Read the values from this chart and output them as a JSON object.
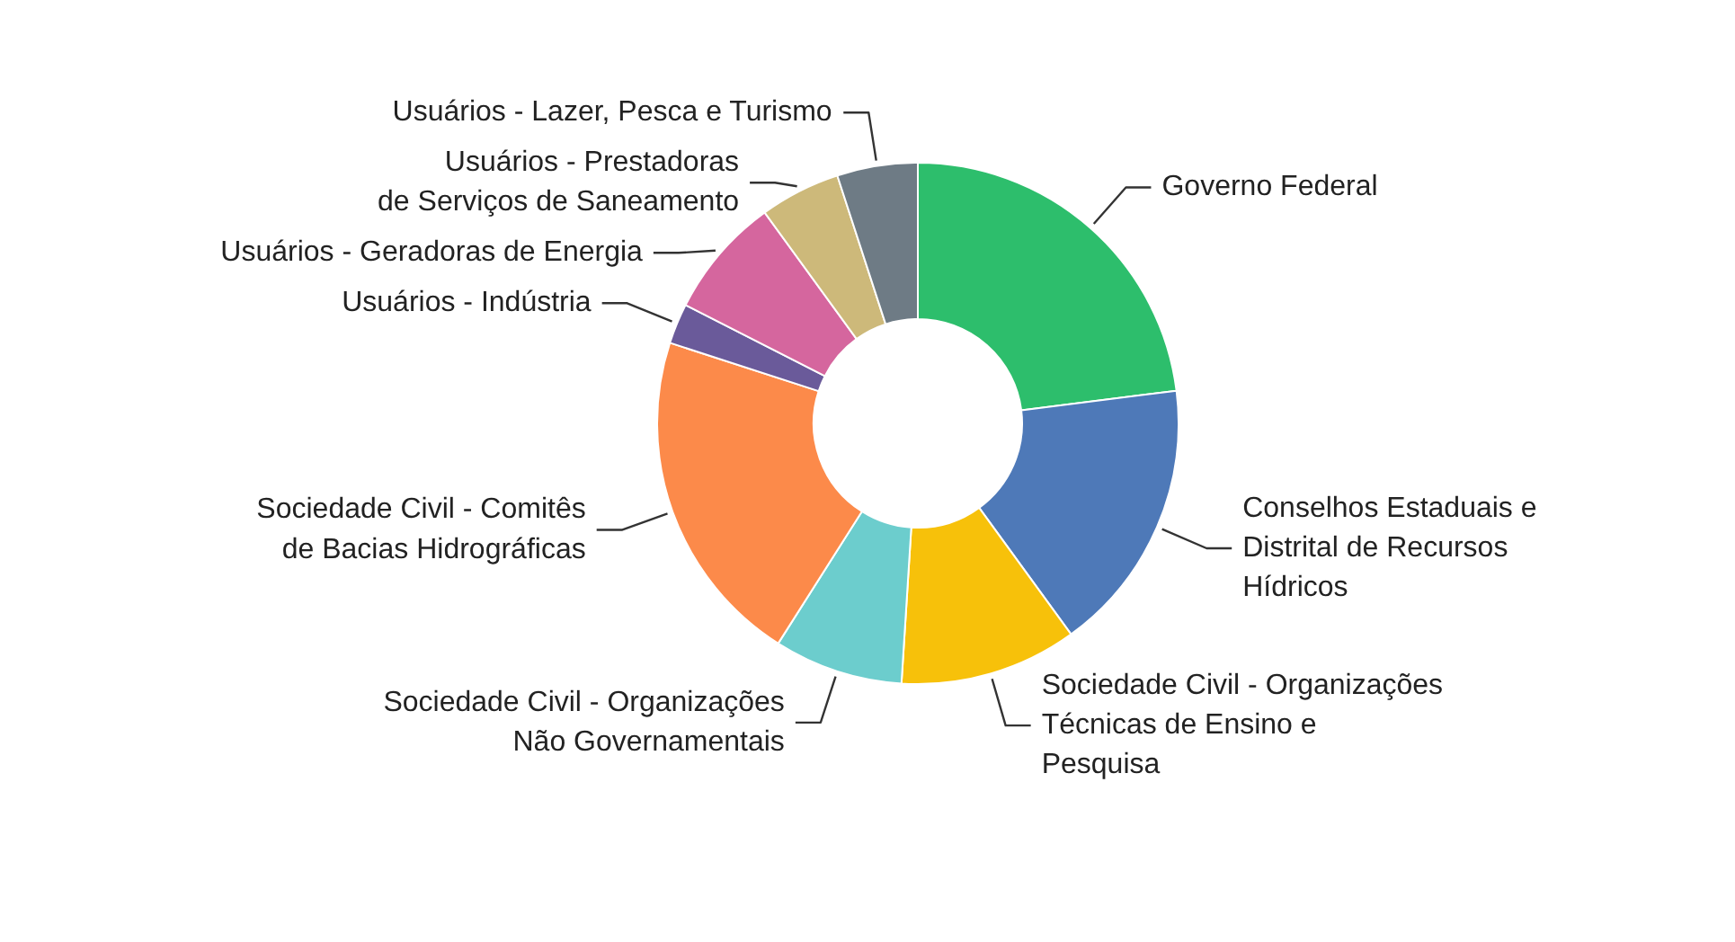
{
  "chart_data": {
    "type": "donut",
    "categories": [
      "Governo Federal",
      "Conselhos Estaduais e\nDistrital de Recursos\nHídricos",
      "Sociedade Civil - Organizações\nTécnicas de Ensino e\nPesquisa",
      "Sociedade Civil - Organizações\nNão Governamentais",
      "Sociedade Civil - Comitês\nde Bacias Hidrográficas",
      "Usuários - Indústria",
      "Usuários - Geradoras de Energia",
      "Usuários - Prestadoras\nde Serviços de Saneamento",
      "Usuários - Lazer, Pesca e Turismo"
    ],
    "values": [
      23,
      17,
      11,
      8,
      21,
      2.5,
      7.5,
      5,
      5
    ],
    "colors": [
      "#2dbe6c",
      "#4e79b8",
      "#f7c10a",
      "#6ccdcd",
      "#fc8a4a",
      "#6a5a9a",
      "#d5669e",
      "#cdb97a",
      "#6e7b85"
    ]
  }
}
